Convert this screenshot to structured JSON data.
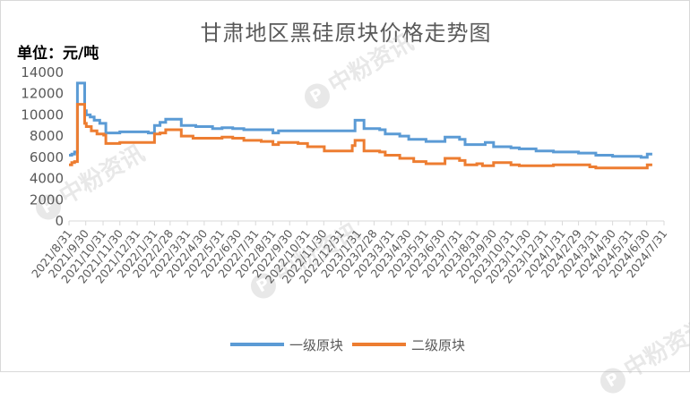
{
  "chart_data": {
    "type": "line",
    "title": "甘肃地区黑硅原块价格走势图",
    "ylabel": "单位：元/吨",
    "xlabel": "",
    "ylim": [
      0,
      14000
    ],
    "y_ticks": [
      "0",
      "2000",
      "4000",
      "6000",
      "8000",
      "10000",
      "12000",
      "14000"
    ],
    "grid": false,
    "legend_position": "bottom",
    "x_tick_labels": [
      "2021/8/31",
      "2021/9/30",
      "2021/10/31",
      "2021/11/30",
      "2021/12/31",
      "2022/1/31",
      "2022/2/28",
      "2022/3/31",
      "2022/4/30",
      "2022/5/31",
      "2022/6/30",
      "2022/7/31",
      "2022/8/31",
      "2022/9/30",
      "2022/10/31",
      "2022/11/30",
      "2022/12/31",
      "2023/1/31",
      "2023/2/28",
      "2023/3/31",
      "2023/4/30",
      "2023/5/31",
      "2023/6/30",
      "2023/7/31",
      "2023/8/31",
      "2023/9/30",
      "2023/10/31",
      "2023/11/30",
      "2023/12/31",
      "2024/1/31",
      "2024/2/29",
      "2024/3/31",
      "2024/4/30",
      "2024/5/31",
      "2024/6/30",
      "2024/7/31"
    ],
    "series": [
      {
        "name": "一级原块",
        "color": "#5b9bd5",
        "points": [
          [
            "2021/8/31",
            6200
          ],
          [
            "2021/9/5",
            6300
          ],
          [
            "2021/9/10",
            6500
          ],
          [
            "2021/9/15",
            13000
          ],
          [
            "2021/9/25",
            13000
          ],
          [
            "2021/9/28",
            10400
          ],
          [
            "2021/10/1",
            10000
          ],
          [
            "2021/10/8",
            9800
          ],
          [
            "2021/10/15",
            9500
          ],
          [
            "2021/10/25",
            9200
          ],
          [
            "2021/11/5",
            8300
          ],
          [
            "2021/11/30",
            8400
          ],
          [
            "2021/12/31",
            8400
          ],
          [
            "2022/1/20",
            8300
          ],
          [
            "2022/1/31",
            9000
          ],
          [
            "2022/2/10",
            9300
          ],
          [
            "2022/2/20",
            9600
          ],
          [
            "2022/3/15",
            9600
          ],
          [
            "2022/3/20",
            9000
          ],
          [
            "2022/4/15",
            8900
          ],
          [
            "2022/5/15",
            8700
          ],
          [
            "2022/6/1",
            8800
          ],
          [
            "2022/6/20",
            8700
          ],
          [
            "2022/7/10",
            8600
          ],
          [
            "2022/8/20",
            8600
          ],
          [
            "2022/8/31",
            8300
          ],
          [
            "2022/9/10",
            8500
          ],
          [
            "2022/10/31",
            8500
          ],
          [
            "2022/12/31",
            8500
          ],
          [
            "2023/1/15",
            8500
          ],
          [
            "2023/1/25",
            9500
          ],
          [
            "2023/2/5",
            9500
          ],
          [
            "2023/2/10",
            8700
          ],
          [
            "2023/3/10",
            8600
          ],
          [
            "2023/3/20",
            8200
          ],
          [
            "2023/4/15",
            8000
          ],
          [
            "2023/5/1",
            7700
          ],
          [
            "2023/6/1",
            7500
          ],
          [
            "2023/6/30",
            7500
          ],
          [
            "2023/7/5",
            7900
          ],
          [
            "2023/7/31",
            7700
          ],
          [
            "2023/8/10",
            7200
          ],
          [
            "2023/8/31",
            7200
          ],
          [
            "2023/9/15",
            7400
          ],
          [
            "2023/9/30",
            7000
          ],
          [
            "2023/10/31",
            6900
          ],
          [
            "2023/11/15",
            6800
          ],
          [
            "2023/12/15",
            6600
          ],
          [
            "2024/1/15",
            6500
          ],
          [
            "2024/2/29",
            6400
          ],
          [
            "2024/3/31",
            6200
          ],
          [
            "2024/4/30",
            6100
          ],
          [
            "2024/5/31",
            6100
          ],
          [
            "2024/6/20",
            6000
          ],
          [
            "2024/7/1",
            6300
          ],
          [
            "2024/7/10",
            6300
          ]
        ]
      },
      {
        "name": "二级原块",
        "color": "#ed7d31",
        "points": [
          [
            "2021/8/31",
            5300
          ],
          [
            "2021/9/5",
            5500
          ],
          [
            "2021/9/10",
            5600
          ],
          [
            "2021/9/15",
            11000
          ],
          [
            "2021/9/25",
            11000
          ],
          [
            "2021/9/28",
            9200
          ],
          [
            "2021/10/1",
            8900
          ],
          [
            "2021/10/10",
            8500
          ],
          [
            "2021/10/20",
            8200
          ],
          [
            "2021/11/1",
            8100
          ],
          [
            "2021/11/5",
            7300
          ],
          [
            "2021/11/30",
            7400
          ],
          [
            "2021/12/31",
            7400
          ],
          [
            "2022/1/20",
            7400
          ],
          [
            "2022/1/31",
            8200
          ],
          [
            "2022/2/10",
            8300
          ],
          [
            "2022/2/20",
            8600
          ],
          [
            "2022/3/15",
            8600
          ],
          [
            "2022/3/20",
            8000
          ],
          [
            "2022/4/10",
            7800
          ],
          [
            "2022/5/15",
            7800
          ],
          [
            "2022/6/1",
            7900
          ],
          [
            "2022/6/20",
            7800
          ],
          [
            "2022/7/10",
            7600
          ],
          [
            "2022/8/10",
            7500
          ],
          [
            "2022/8/31",
            7200
          ],
          [
            "2022/9/10",
            7400
          ],
          [
            "2022/10/15",
            7300
          ],
          [
            "2022/11/1",
            7000
          ],
          [
            "2022/12/1",
            6600
          ],
          [
            "2023/1/15",
            6600
          ],
          [
            "2023/1/20",
            7100
          ],
          [
            "2023/1/25",
            7600
          ],
          [
            "2023/2/5",
            7600
          ],
          [
            "2023/2/10",
            6600
          ],
          [
            "2023/3/10",
            6500
          ],
          [
            "2023/3/20",
            6200
          ],
          [
            "2023/4/15",
            5900
          ],
          [
            "2023/5/10",
            5600
          ],
          [
            "2023/6/1",
            5400
          ],
          [
            "2023/6/30",
            5400
          ],
          [
            "2023/7/5",
            5900
          ],
          [
            "2023/7/31",
            5700
          ],
          [
            "2023/8/10",
            5300
          ],
          [
            "2023/8/31",
            5400
          ],
          [
            "2023/9/10",
            5200
          ],
          [
            "2023/9/30",
            5500
          ],
          [
            "2023/10/31",
            5300
          ],
          [
            "2023/11/15",
            5200
          ],
          [
            "2023/12/31",
            5200
          ],
          [
            "2024/1/15",
            5300
          ],
          [
            "2024/2/29",
            5300
          ],
          [
            "2024/3/20",
            5100
          ],
          [
            "2024/3/31",
            5000
          ],
          [
            "2024/5/31",
            5000
          ],
          [
            "2024/6/20",
            5000
          ],
          [
            "2024/7/1",
            5300
          ],
          [
            "2024/7/10",
            5300
          ]
        ]
      }
    ]
  },
  "watermark": "中粉资讯",
  "colors": {
    "axis_text": "#595959",
    "axis_line": "#d9d9d9"
  }
}
